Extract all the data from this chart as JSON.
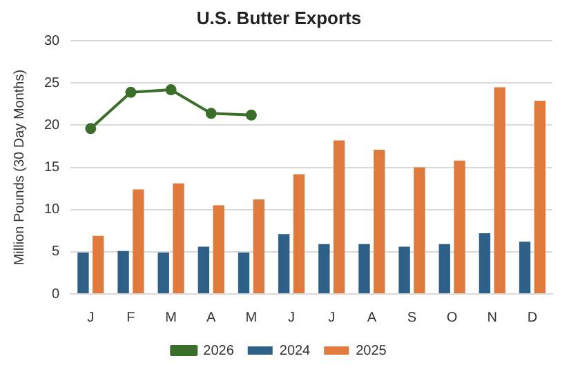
{
  "chart_data": {
    "type": "bar",
    "title": "U.S. Butter Exports",
    "ylabel": "Million Pounds (30 Day Months)",
    "categories": [
      "J",
      "F",
      "M",
      "A",
      "M",
      "J",
      "J",
      "A",
      "S",
      "O",
      "N",
      "D"
    ],
    "series": [
      {
        "name": "2024",
        "color": "#2e5f86",
        "values": [
          4.9,
          5.1,
          4.9,
          5.6,
          4.9,
          7.1,
          5.9,
          5.9,
          5.6,
          5.9,
          7.2,
          6.2
        ]
      },
      {
        "name": "2025",
        "color": "#e07a3c",
        "values": [
          6.9,
          12.4,
          13.1,
          10.5,
          11.2,
          14.2,
          18.2,
          17.1,
          15.0,
          15.8,
          24.5,
          22.9
        ]
      },
      {
        "name": "2026",
        "type": "line",
        "color": "#3a6e2a",
        "values": [
          19.6,
          23.9,
          24.2,
          21.4,
          21.2,
          null,
          null,
          null,
          null,
          null,
          null,
          null
        ]
      }
    ],
    "ylim": [
      0,
      30
    ],
    "yticks": [
      0,
      5,
      10,
      15,
      20,
      25,
      30
    ],
    "grid": "y",
    "legend": "bottom",
    "marker": "circle"
  }
}
